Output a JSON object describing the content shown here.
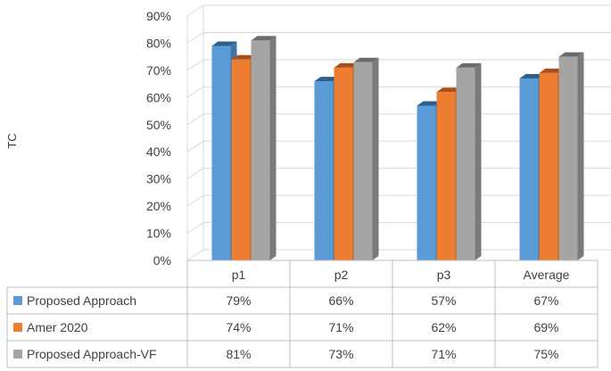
{
  "chart_data": {
    "type": "bar",
    "ylabel": "TC",
    "ylim": [
      0,
      90
    ],
    "yticks": [
      0,
      10,
      20,
      30,
      40,
      50,
      60,
      70,
      80,
      90
    ],
    "ytick_labels": [
      "0%",
      "10%",
      "20%",
      "30%",
      "40%",
      "50%",
      "60%",
      "70%",
      "80%",
      "90%"
    ],
    "categories": [
      "p1",
      "p2",
      "p3",
      "Average"
    ],
    "grid": true,
    "style": "3d-column-with-data-table",
    "series": [
      {
        "name": "Proposed Approach",
        "values": [
          79,
          66,
          57,
          67
        ],
        "labels": [
          "79%",
          "66%",
          "57%",
          "67%"
        ],
        "color": "#5b9bd5",
        "side": "#3f74a8",
        "top": "#2e5f8f"
      },
      {
        "name": "Amer 2020",
        "values": [
          74,
          71,
          62,
          69
        ],
        "labels": [
          "74%",
          "71%",
          "62%",
          "69%"
        ],
        "color": "#ed7d31",
        "side": "#b85e22",
        "top": "#a8501a"
      },
      {
        "name": "Proposed Approach-VF",
        "values": [
          81,
          73,
          71,
          75
        ],
        "labels": [
          "81%",
          "73%",
          "71%",
          "75%"
        ],
        "color": "#a5a5a5",
        "side": "#7a7a7a",
        "top": "#6b6b6b"
      }
    ]
  }
}
